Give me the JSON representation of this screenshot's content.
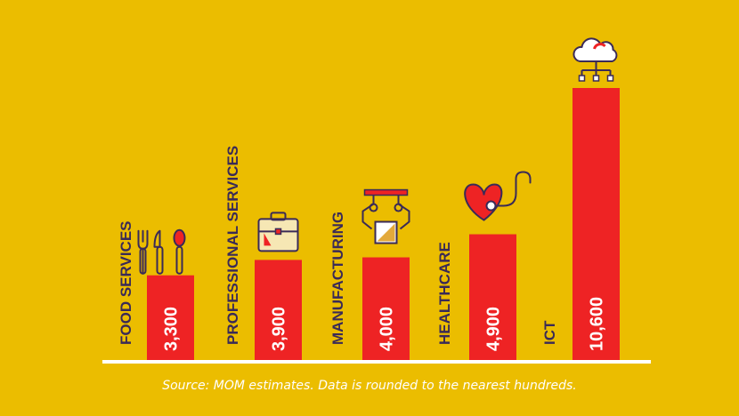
{
  "colors": {
    "background": "#ebbd00",
    "bar": "#ee2324",
    "label": "#3a2a57",
    "value_text": "#ffffff",
    "baseline": "#ffffff",
    "icon_stroke": "#3a2a57",
    "icon_fill": "#ee2324",
    "icon_light": "#f7d488"
  },
  "source_note": "Source: MOM estimates. Data is rounded to the nearest hundreds.",
  "chart_data": {
    "type": "bar",
    "categories": [
      "FOOD SERVICES",
      "PROFESSIONAL SERVICES",
      "MANUFACTURING",
      "HEALTHCARE",
      "ICT"
    ],
    "values": [
      3300,
      3900,
      4000,
      4900,
      10600
    ],
    "value_labels": [
      "3,300",
      "3,900",
      "4,000",
      "4,900",
      "10,600"
    ],
    "icons": [
      "cutlery-icon",
      "briefcase-icon",
      "robotic-arm-icon",
      "stethoscope-heart-icon",
      "cloud-network-icon"
    ],
    "ylim": [
      0,
      10600
    ],
    "grid": false,
    "legend": "none"
  }
}
